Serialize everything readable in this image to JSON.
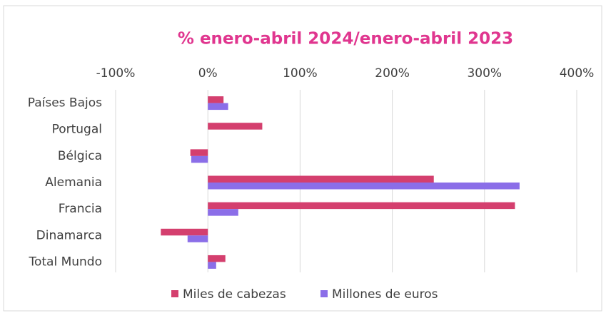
{
  "chart_data": {
    "type": "hbar",
    "title": "% enero-abril 2024/enero-abril 2023",
    "categories": [
      "Países Bajos",
      "Portugal",
      "Bélgica",
      "Alemania",
      "Francia",
      "Dinamarca",
      "Total Mundo"
    ],
    "series": [
      {
        "name": "Miles de cabezas",
        "color": "#d43f6e",
        "values": [
          17,
          59,
          -19,
          245,
          333,
          -51,
          19
        ]
      },
      {
        "name": "Millones de euros",
        "color": "#8b6ee8",
        "values": [
          22,
          null,
          -18,
          338,
          33,
          -22,
          9
        ]
      }
    ],
    "xlim": [
      -100,
      400
    ],
    "xticks": [
      {
        "value": -100,
        "label": "-100%"
      },
      {
        "value": 0,
        "label": "0%"
      },
      {
        "value": 100,
        "label": "100%"
      },
      {
        "value": 200,
        "label": "200%"
      },
      {
        "value": 300,
        "label": "300%"
      },
      {
        "value": 400,
        "label": "400%"
      }
    ],
    "grid": true,
    "legend": "bottom"
  }
}
